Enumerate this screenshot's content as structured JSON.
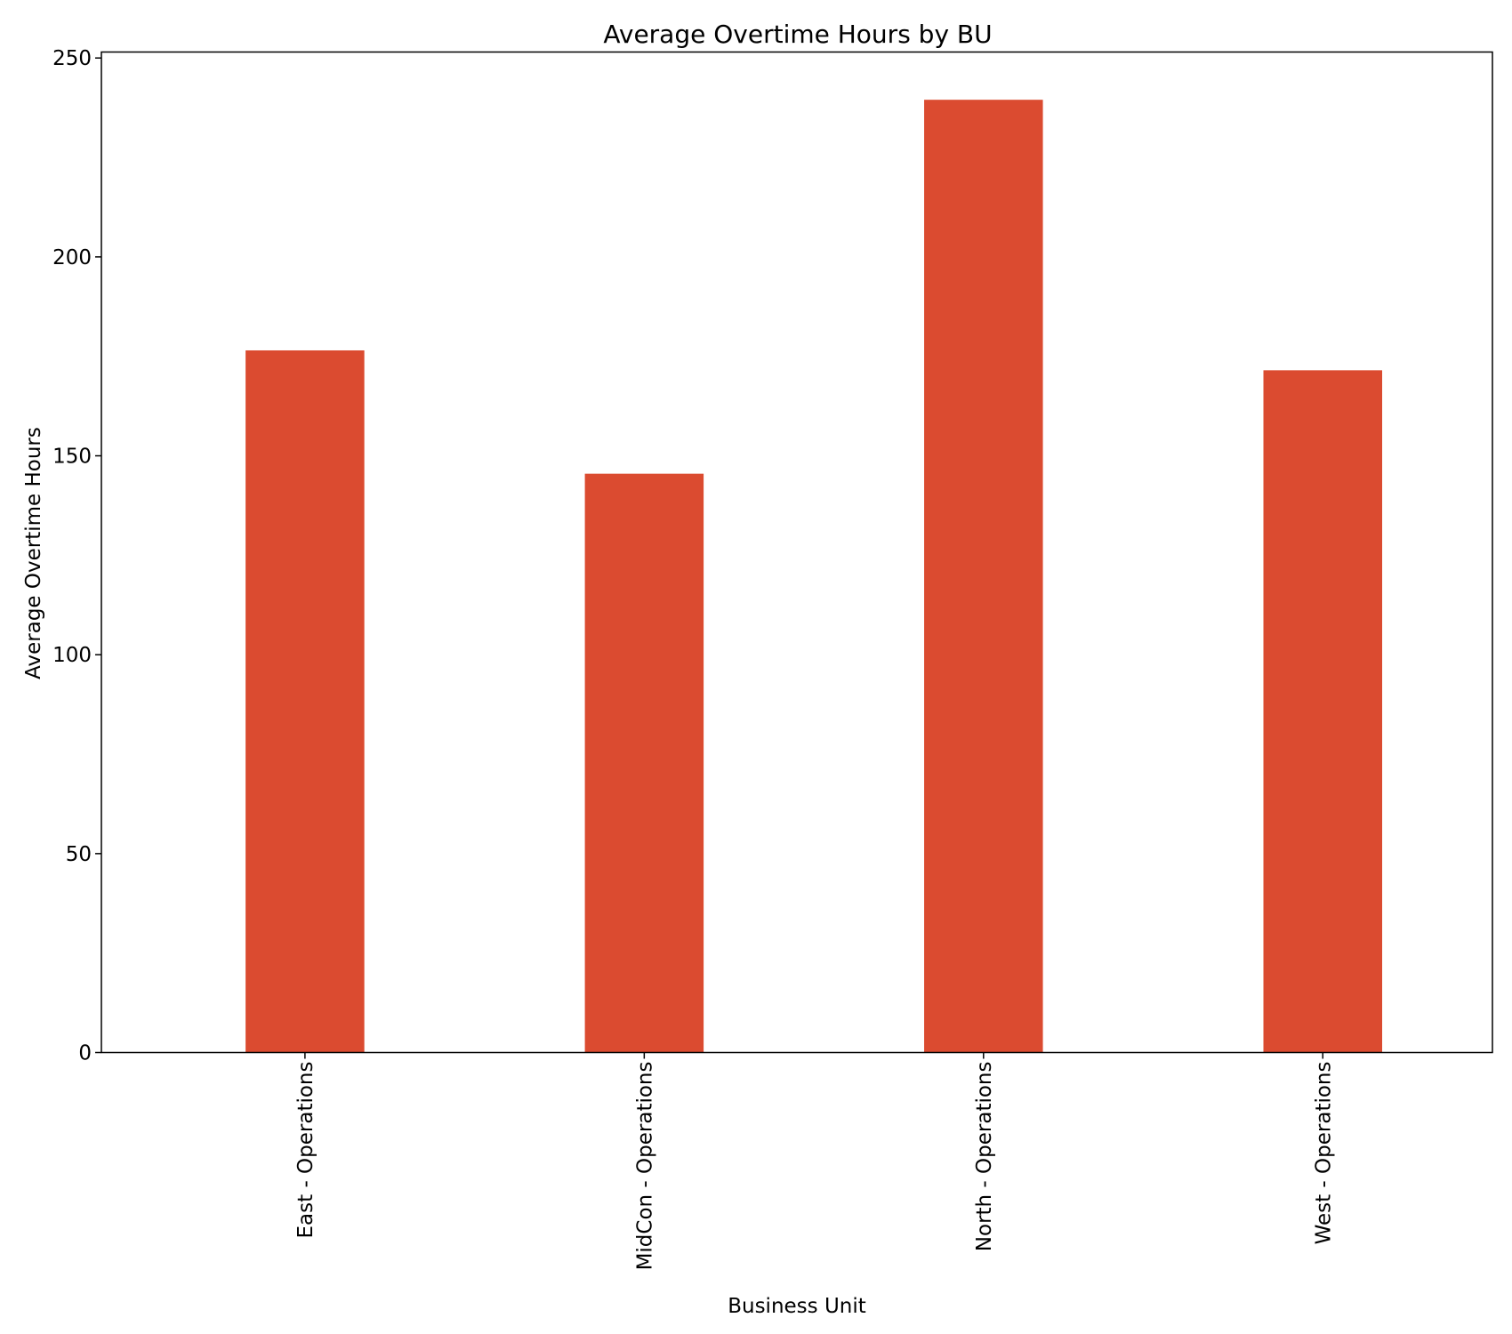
{
  "chart_data": {
    "type": "bar",
    "title": "Average Overtime Hours by BU",
    "xlabel": "Business Unit",
    "ylabel": "Average Overtime Hours",
    "categories": [
      "East - Operations",
      "MidCon - Operations",
      "North - Operations",
      "West - Operations"
    ],
    "values": [
      176.5,
      145.5,
      239.5,
      171.5
    ],
    "ylim": [
      0,
      251.5
    ],
    "yticks": [
      0,
      50,
      100,
      150,
      200,
      250
    ],
    "bar_color": "#db4b30",
    "grid": false,
    "legend": "none"
  }
}
